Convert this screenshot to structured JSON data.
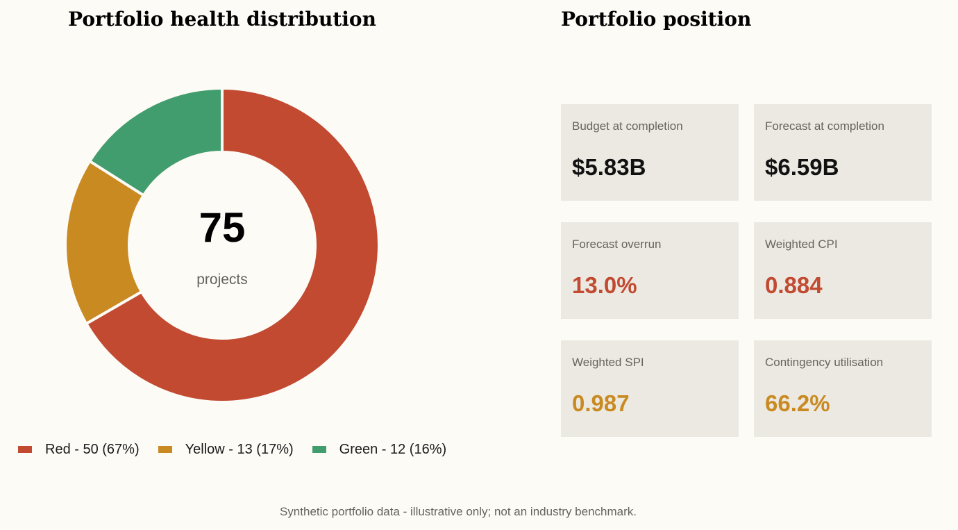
{
  "left_panel": {
    "title": "Portfolio health distribution",
    "center_value": "75",
    "center_label": "projects"
  },
  "chart_data": {
    "type": "pie",
    "donut": true,
    "title": "Portfolio health distribution",
    "total": 75,
    "slices": [
      {
        "label": "Red",
        "value": 50,
        "percent": 67,
        "color": "#c14a31",
        "legend_text": "Red - 50 (67%)"
      },
      {
        "label": "Yellow",
        "value": 13,
        "percent": 17,
        "color": "#c98a22",
        "legend_text": "Yellow - 13 (17%)"
      },
      {
        "label": "Green",
        "value": 12,
        "percent": 16,
        "color": "#419d6d",
        "legend_text": "Green - 12 (16%)"
      }
    ],
    "legend_position": "bottom"
  },
  "right_panel": {
    "title": "Portfolio position",
    "cards": [
      {
        "label": "Budget at completion",
        "value": "$5.83B",
        "color": "#111111"
      },
      {
        "label": "Forecast at completion",
        "value": "$6.59B",
        "color": "#111111"
      },
      {
        "label": "Forecast overrun",
        "value": "13.0%",
        "color": "#c14a31"
      },
      {
        "label": "Weighted CPI",
        "value": "0.884",
        "color": "#c14a31"
      },
      {
        "label": "Weighted SPI",
        "value": "0.987",
        "color": "#c98a22"
      },
      {
        "label": "Contingency utilisation",
        "value": "66.2%",
        "color": "#c98a22"
      }
    ]
  },
  "footnote": "Synthetic portfolio data - illustrative only; not an industry benchmark."
}
